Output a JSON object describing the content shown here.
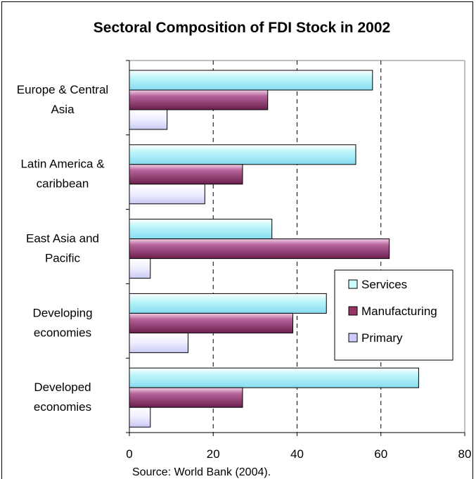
{
  "chart_data": {
    "type": "bar",
    "orientation": "horizontal",
    "title": "Sectoral Composition of FDI Stock in 2002",
    "source": "Source: World Bank  (2004).",
    "categories": [
      [
        "Europe & Central",
        "Asia"
      ],
      [
        "Latin America &",
        "caribbean"
      ],
      [
        "East Asia and",
        "Pacific"
      ],
      [
        "Developing",
        "economies"
      ],
      [
        "Developed",
        "economies"
      ]
    ],
    "series": [
      {
        "name": "Services",
        "color": "#ccffff",
        "values": [
          58,
          54,
          34,
          47,
          69
        ]
      },
      {
        "name": "Manufacturing",
        "color": "#993366",
        "values": [
          33,
          27,
          62,
          39,
          27
        ]
      },
      {
        "name": "Primary",
        "color": "#ccccff",
        "values": [
          9,
          18,
          5,
          14,
          5
        ]
      }
    ],
    "xlim": [
      0,
      80
    ],
    "xticks": [
      0,
      20,
      40,
      60,
      80
    ],
    "grid": "vertical dashed",
    "legend": "right"
  }
}
